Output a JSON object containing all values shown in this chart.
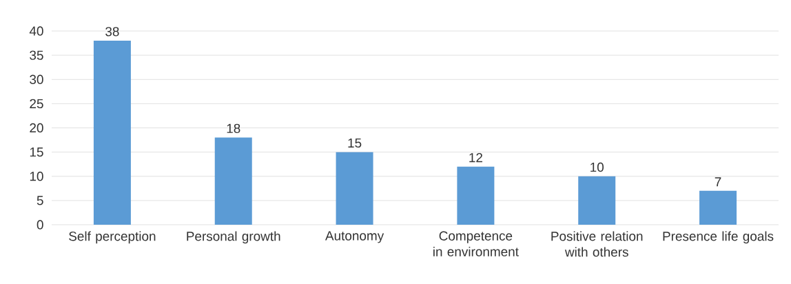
{
  "chart_data": {
    "type": "bar",
    "categories": [
      "Self perception",
      "Personal growth",
      "Autonomy",
      "Competence in environment",
      "Positive relation with others",
      "Presence life goals"
    ],
    "values": [
      38,
      18,
      15,
      12,
      10,
      7
    ],
    "color": "#5b9bd5",
    "ylim": [
      0,
      40
    ],
    "yticks": [
      0,
      5,
      10,
      15,
      20,
      25,
      30,
      35,
      40
    ],
    "grid": "y",
    "data_labels": true
  }
}
